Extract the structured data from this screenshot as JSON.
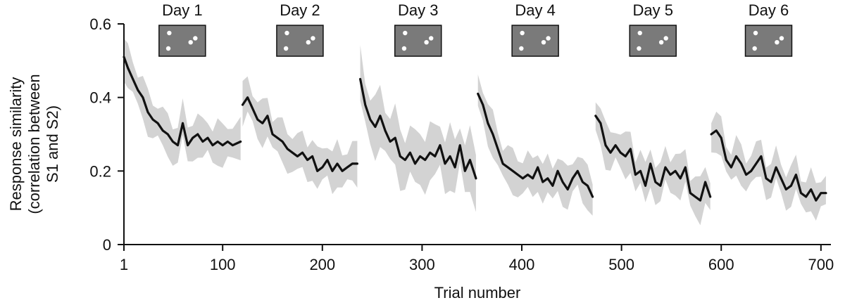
{
  "chart_data": {
    "type": "line",
    "title": "",
    "xlabel": "Trial number",
    "ylabel_lines": [
      "Response similarity",
      "(correlation between",
      "S1 and S2)"
    ],
    "xlim": [
      1,
      710
    ],
    "ylim": [
      0,
      0.6
    ],
    "x_ticks": [
      1,
      100,
      200,
      300,
      400,
      500,
      600,
      700
    ],
    "y_ticks": [
      0,
      0.2,
      0.4,
      0.6
    ],
    "y_tick_labels": [
      "0",
      "0.2",
      "0.4",
      "0.6"
    ],
    "grid": false,
    "legend": "none",
    "colors": {
      "line": "#111111",
      "band": "#d3d3d3",
      "axis": "#111111",
      "thumb_bg": "#7a7a7a",
      "thumb_spot": "#ffffff"
    },
    "days": [
      {
        "label": "Day 1",
        "x": [
          1,
          5,
          10,
          15,
          20,
          25,
          30,
          35,
          40,
          45,
          50,
          55,
          60,
          65,
          70,
          75,
          80,
          85,
          90,
          95,
          100,
          105,
          110,
          118
        ],
        "mean": [
          0.51,
          0.48,
          0.45,
          0.42,
          0.4,
          0.36,
          0.34,
          0.33,
          0.31,
          0.3,
          0.28,
          0.27,
          0.33,
          0.27,
          0.29,
          0.3,
          0.28,
          0.29,
          0.27,
          0.28,
          0.27,
          0.28,
          0.27,
          0.28
        ],
        "spread": 0.05
      },
      {
        "label": "Day 2",
        "x": [
          120,
          125,
          130,
          135,
          140,
          145,
          150,
          155,
          160,
          165,
          170,
          175,
          180,
          185,
          190,
          195,
          200,
          205,
          210,
          215,
          220,
          225,
          230,
          235
        ],
        "mean": [
          0.38,
          0.4,
          0.37,
          0.34,
          0.33,
          0.35,
          0.3,
          0.29,
          0.28,
          0.26,
          0.25,
          0.24,
          0.25,
          0.23,
          0.24,
          0.2,
          0.21,
          0.23,
          0.2,
          0.22,
          0.2,
          0.21,
          0.22,
          0.22
        ],
        "spread": 0.05
      },
      {
        "label": "Day 3",
        "x": [
          238,
          243,
          248,
          253,
          258,
          263,
          268,
          273,
          278,
          283,
          288,
          293,
          298,
          303,
          308,
          313,
          318,
          323,
          328,
          333,
          338,
          343,
          348,
          354
        ],
        "mean": [
          0.45,
          0.38,
          0.34,
          0.32,
          0.35,
          0.31,
          0.28,
          0.29,
          0.24,
          0.23,
          0.25,
          0.22,
          0.24,
          0.23,
          0.25,
          0.24,
          0.27,
          0.22,
          0.24,
          0.21,
          0.27,
          0.2,
          0.23,
          0.18
        ],
        "spread": 0.07
      },
      {
        "label": "Day 4",
        "x": [
          356,
          361,
          366,
          371,
          376,
          381,
          386,
          391,
          396,
          401,
          406,
          411,
          416,
          421,
          426,
          431,
          436,
          441,
          446,
          451,
          456,
          461,
          466,
          471
        ],
        "mean": [
          0.41,
          0.38,
          0.33,
          0.3,
          0.26,
          0.22,
          0.21,
          0.2,
          0.19,
          0.18,
          0.19,
          0.18,
          0.21,
          0.17,
          0.18,
          0.16,
          0.2,
          0.17,
          0.15,
          0.18,
          0.2,
          0.17,
          0.16,
          0.13
        ],
        "spread": 0.05
      },
      {
        "label": "Day 5",
        "x": [
          474,
          479,
          484,
          489,
          494,
          499,
          504,
          509,
          514,
          519,
          524,
          529,
          534,
          539,
          544,
          549,
          554,
          559,
          564,
          569,
          574,
          579,
          584,
          589
        ],
        "mean": [
          0.35,
          0.33,
          0.27,
          0.25,
          0.27,
          0.25,
          0.24,
          0.26,
          0.19,
          0.2,
          0.16,
          0.22,
          0.17,
          0.16,
          0.21,
          0.19,
          0.2,
          0.18,
          0.21,
          0.14,
          0.13,
          0.12,
          0.17,
          0.13
        ],
        "spread": 0.05
      },
      {
        "label": "Day 6",
        "x": [
          590,
          595,
          600,
          605,
          610,
          615,
          620,
          625,
          630,
          635,
          640,
          645,
          650,
          655,
          660,
          665,
          670,
          675,
          680,
          685,
          690,
          695,
          700,
          705
        ],
        "mean": [
          0.3,
          0.31,
          0.29,
          0.23,
          0.21,
          0.24,
          0.22,
          0.19,
          0.2,
          0.22,
          0.24,
          0.18,
          0.17,
          0.21,
          0.18,
          0.15,
          0.16,
          0.19,
          0.14,
          0.13,
          0.15,
          0.12,
          0.14,
          0.14
        ],
        "spread": 0.045
      }
    ]
  }
}
